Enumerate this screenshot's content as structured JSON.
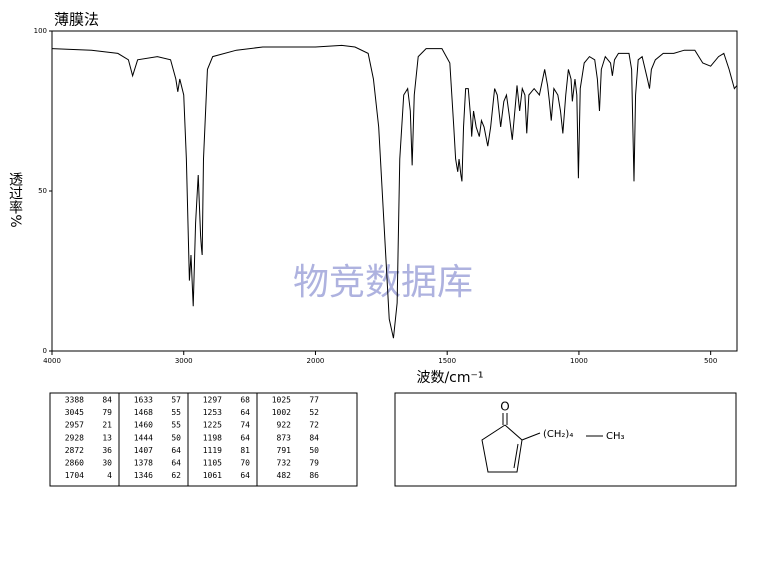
{
  "chart_data": {
    "type": "line",
    "title": "薄膜法",
    "y_label": "透过率%",
    "x_label": "波数/cm⁻¹",
    "watermark": "物竞数据库",
    "xlim": [
      4000,
      400
    ],
    "ylim": [
      0,
      100
    ],
    "x_scale_break": 2000,
    "xticks": [
      4000,
      3000,
      2000,
      1500,
      1000,
      500
    ],
    "yticks": [
      0,
      50,
      100
    ],
    "color": "#000000",
    "x": [
      4000,
      3700,
      3500,
      3420,
      3388,
      3350,
      3200,
      3100,
      3060,
      3045,
      3030,
      3000,
      2980,
      2957,
      2945,
      2928,
      2910,
      2890,
      2872,
      2865,
      2860,
      2850,
      2820,
      2780,
      2600,
      2400,
      2200,
      2000,
      1900,
      1850,
      1800,
      1780,
      1760,
      1740,
      1720,
      1704,
      1690,
      1680,
      1665,
      1650,
      1640,
      1633,
      1625,
      1610,
      1580,
      1520,
      1490,
      1475,
      1468,
      1464,
      1460,
      1455,
      1448,
      1444,
      1438,
      1430,
      1420,
      1410,
      1407,
      1400,
      1390,
      1378,
      1370,
      1360,
      1346,
      1335,
      1320,
      1310,
      1297,
      1285,
      1275,
      1265,
      1253,
      1240,
      1235,
      1225,
      1215,
      1205,
      1198,
      1190,
      1170,
      1150,
      1130,
      1119,
      1112,
      1105,
      1095,
      1080,
      1070,
      1061,
      1050,
      1040,
      1030,
      1025,
      1015,
      1008,
      1002,
      995,
      980,
      960,
      940,
      930,
      922,
      915,
      900,
      880,
      873,
      865,
      850,
      810,
      800,
      791,
      785,
      775,
      760,
      740,
      732,
      725,
      710,
      680,
      640,
      600,
      560,
      530,
      500,
      470,
      450,
      430,
      410,
      400
    ],
    "values": [
      94.5,
      94,
      93,
      91,
      86,
      91,
      92,
      91,
      85,
      81,
      85,
      80,
      60,
      22,
      30,
      14,
      40,
      55,
      36,
      32,
      30,
      60,
      88,
      92,
      94,
      95,
      95,
      95,
      95.5,
      95,
      93,
      85,
      70,
      40,
      10,
      4,
      15,
      60,
      80,
      82,
      75,
      58,
      80,
      92,
      94.5,
      94.5,
      90,
      70,
      60,
      58,
      56,
      60,
      55,
      53,
      70,
      82,
      82,
      72,
      67,
      75,
      70,
      67,
      72,
      70,
      64,
      70,
      82,
      80,
      70,
      78,
      80,
      74,
      66,
      78,
      83,
      75,
      82,
      80,
      68,
      80,
      82,
      80,
      88,
      83,
      78,
      72,
      82,
      80,
      75,
      68,
      80,
      88,
      85,
      78,
      85,
      80,
      54,
      82,
      90,
      92,
      91,
      85,
      75,
      88,
      92,
      90,
      86,
      91,
      93,
      93,
      88,
      53,
      80,
      91,
      92,
      85,
      82,
      88,
      91,
      93,
      93,
      94,
      94,
      90,
      89,
      92,
      93,
      88,
      82,
      83
    ]
  },
  "peak_table": [
    [
      3388,
      84
    ],
    [
      3045,
      79
    ],
    [
      2957,
      21
    ],
    [
      2928,
      13
    ],
    [
      2872,
      36
    ],
    [
      2860,
      30
    ],
    [
      1704,
      4
    ],
    [
      1633,
      57
    ],
    [
      1468,
      55
    ],
    [
      1460,
      55
    ],
    [
      1444,
      50
    ],
    [
      1407,
      64
    ],
    [
      1378,
      64
    ],
    [
      1346,
      62
    ],
    [
      1297,
      68
    ],
    [
      1253,
      64
    ],
    [
      1225,
      74
    ],
    [
      1198,
      64
    ],
    [
      1119,
      81
    ],
    [
      1105,
      70
    ],
    [
      1061,
      64
    ],
    [
      1025,
      77
    ],
    [
      1002,
      52
    ],
    [
      922,
      72
    ],
    [
      873,
      84
    ],
    [
      791,
      50
    ],
    [
      732,
      79
    ],
    [
      482,
      86
    ]
  ],
  "structure": {
    "oxygen": "O",
    "chain": "(CH₂)₄",
    "terminal": "CH₃"
  }
}
